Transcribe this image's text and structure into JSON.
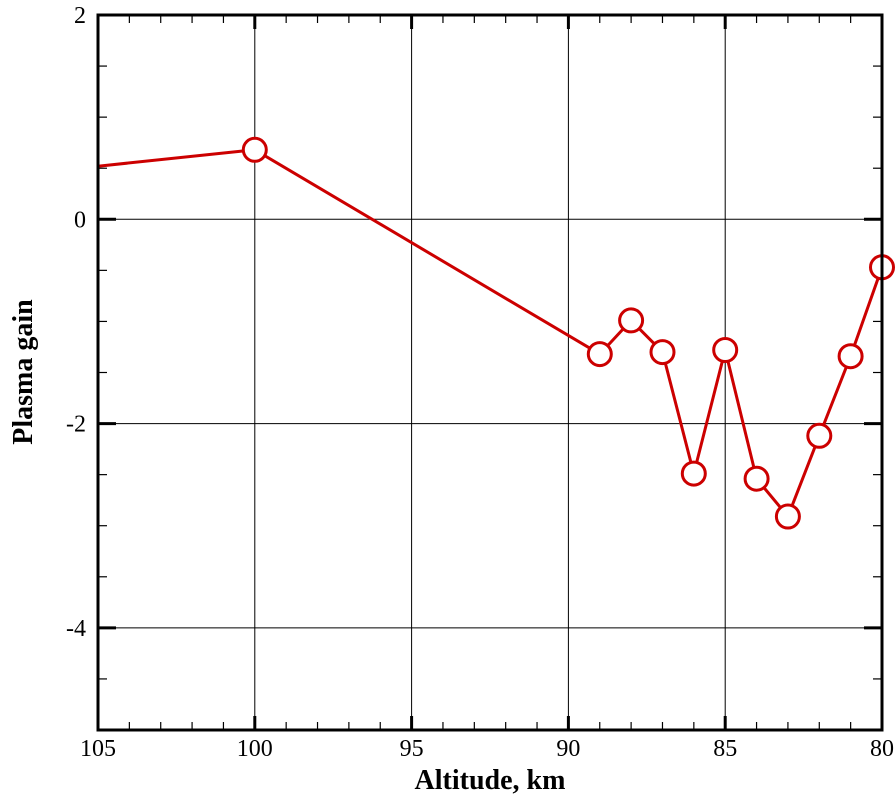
{
  "chart_data": {
    "type": "line",
    "title": "",
    "xlabel": "Altitude, km",
    "ylabel": "Plasma gain",
    "xlim": [
      105,
      80
    ],
    "ylim": [
      -5,
      2
    ],
    "x_reversed": true,
    "x_ticks": [
      105,
      100,
      95,
      90,
      85,
      80
    ],
    "y_ticks": [
      2,
      0,
      -2,
      -4
    ],
    "grid": true,
    "line_color": "#cc0000",
    "marker": "open-circle",
    "series": [
      {
        "x": [
          105,
          100,
          89,
          88,
          87,
          86,
          85,
          84,
          83,
          82,
          81,
          80
        ],
        "y": [
          0.52,
          0.68,
          -1.32,
          -0.99,
          -1.3,
          -2.49,
          -1.28,
          -2.54,
          -2.91,
          -2.12,
          -1.34,
          -0.47
        ],
        "marked": [
          false,
          true,
          true,
          true,
          true,
          true,
          true,
          true,
          true,
          true,
          true,
          true
        ]
      }
    ]
  }
}
